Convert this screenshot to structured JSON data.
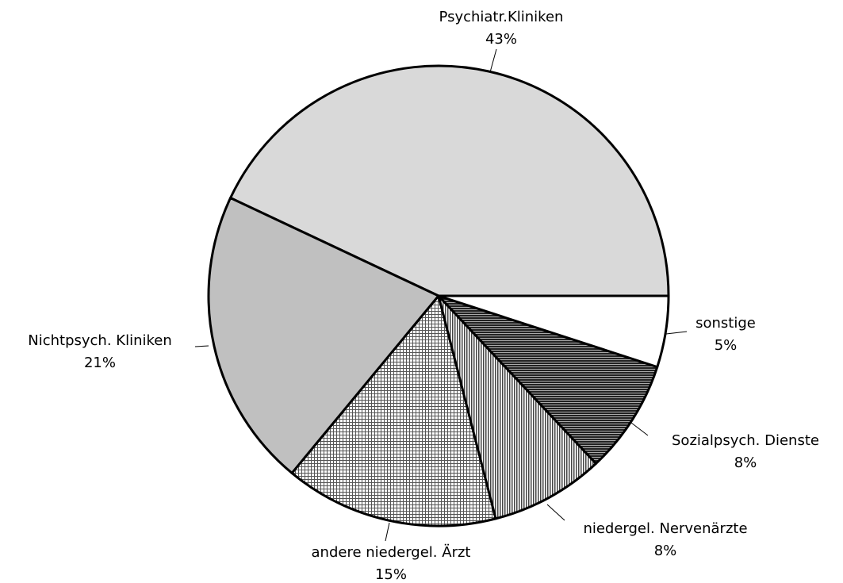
{
  "chart_data": {
    "type": "pie",
    "categories": [
      "Psychiatr.Kliniken",
      "Nichtpsych. Kliniken",
      "andere niedergel. Ärzt",
      "niedergel. Nervenärzte",
      "Sozialpsych. Dienste",
      "sonstige"
    ],
    "values": [
      43,
      21,
      15,
      8,
      8,
      5
    ],
    "value_labels": [
      "43%",
      "21%",
      "15%",
      "8%",
      "8%",
      "5%"
    ],
    "colors": [
      "#d9d9d9",
      "#c0c0c0",
      "crosshatch",
      "vertical-lines",
      "horizontal-lines",
      "#ffffff"
    ]
  }
}
